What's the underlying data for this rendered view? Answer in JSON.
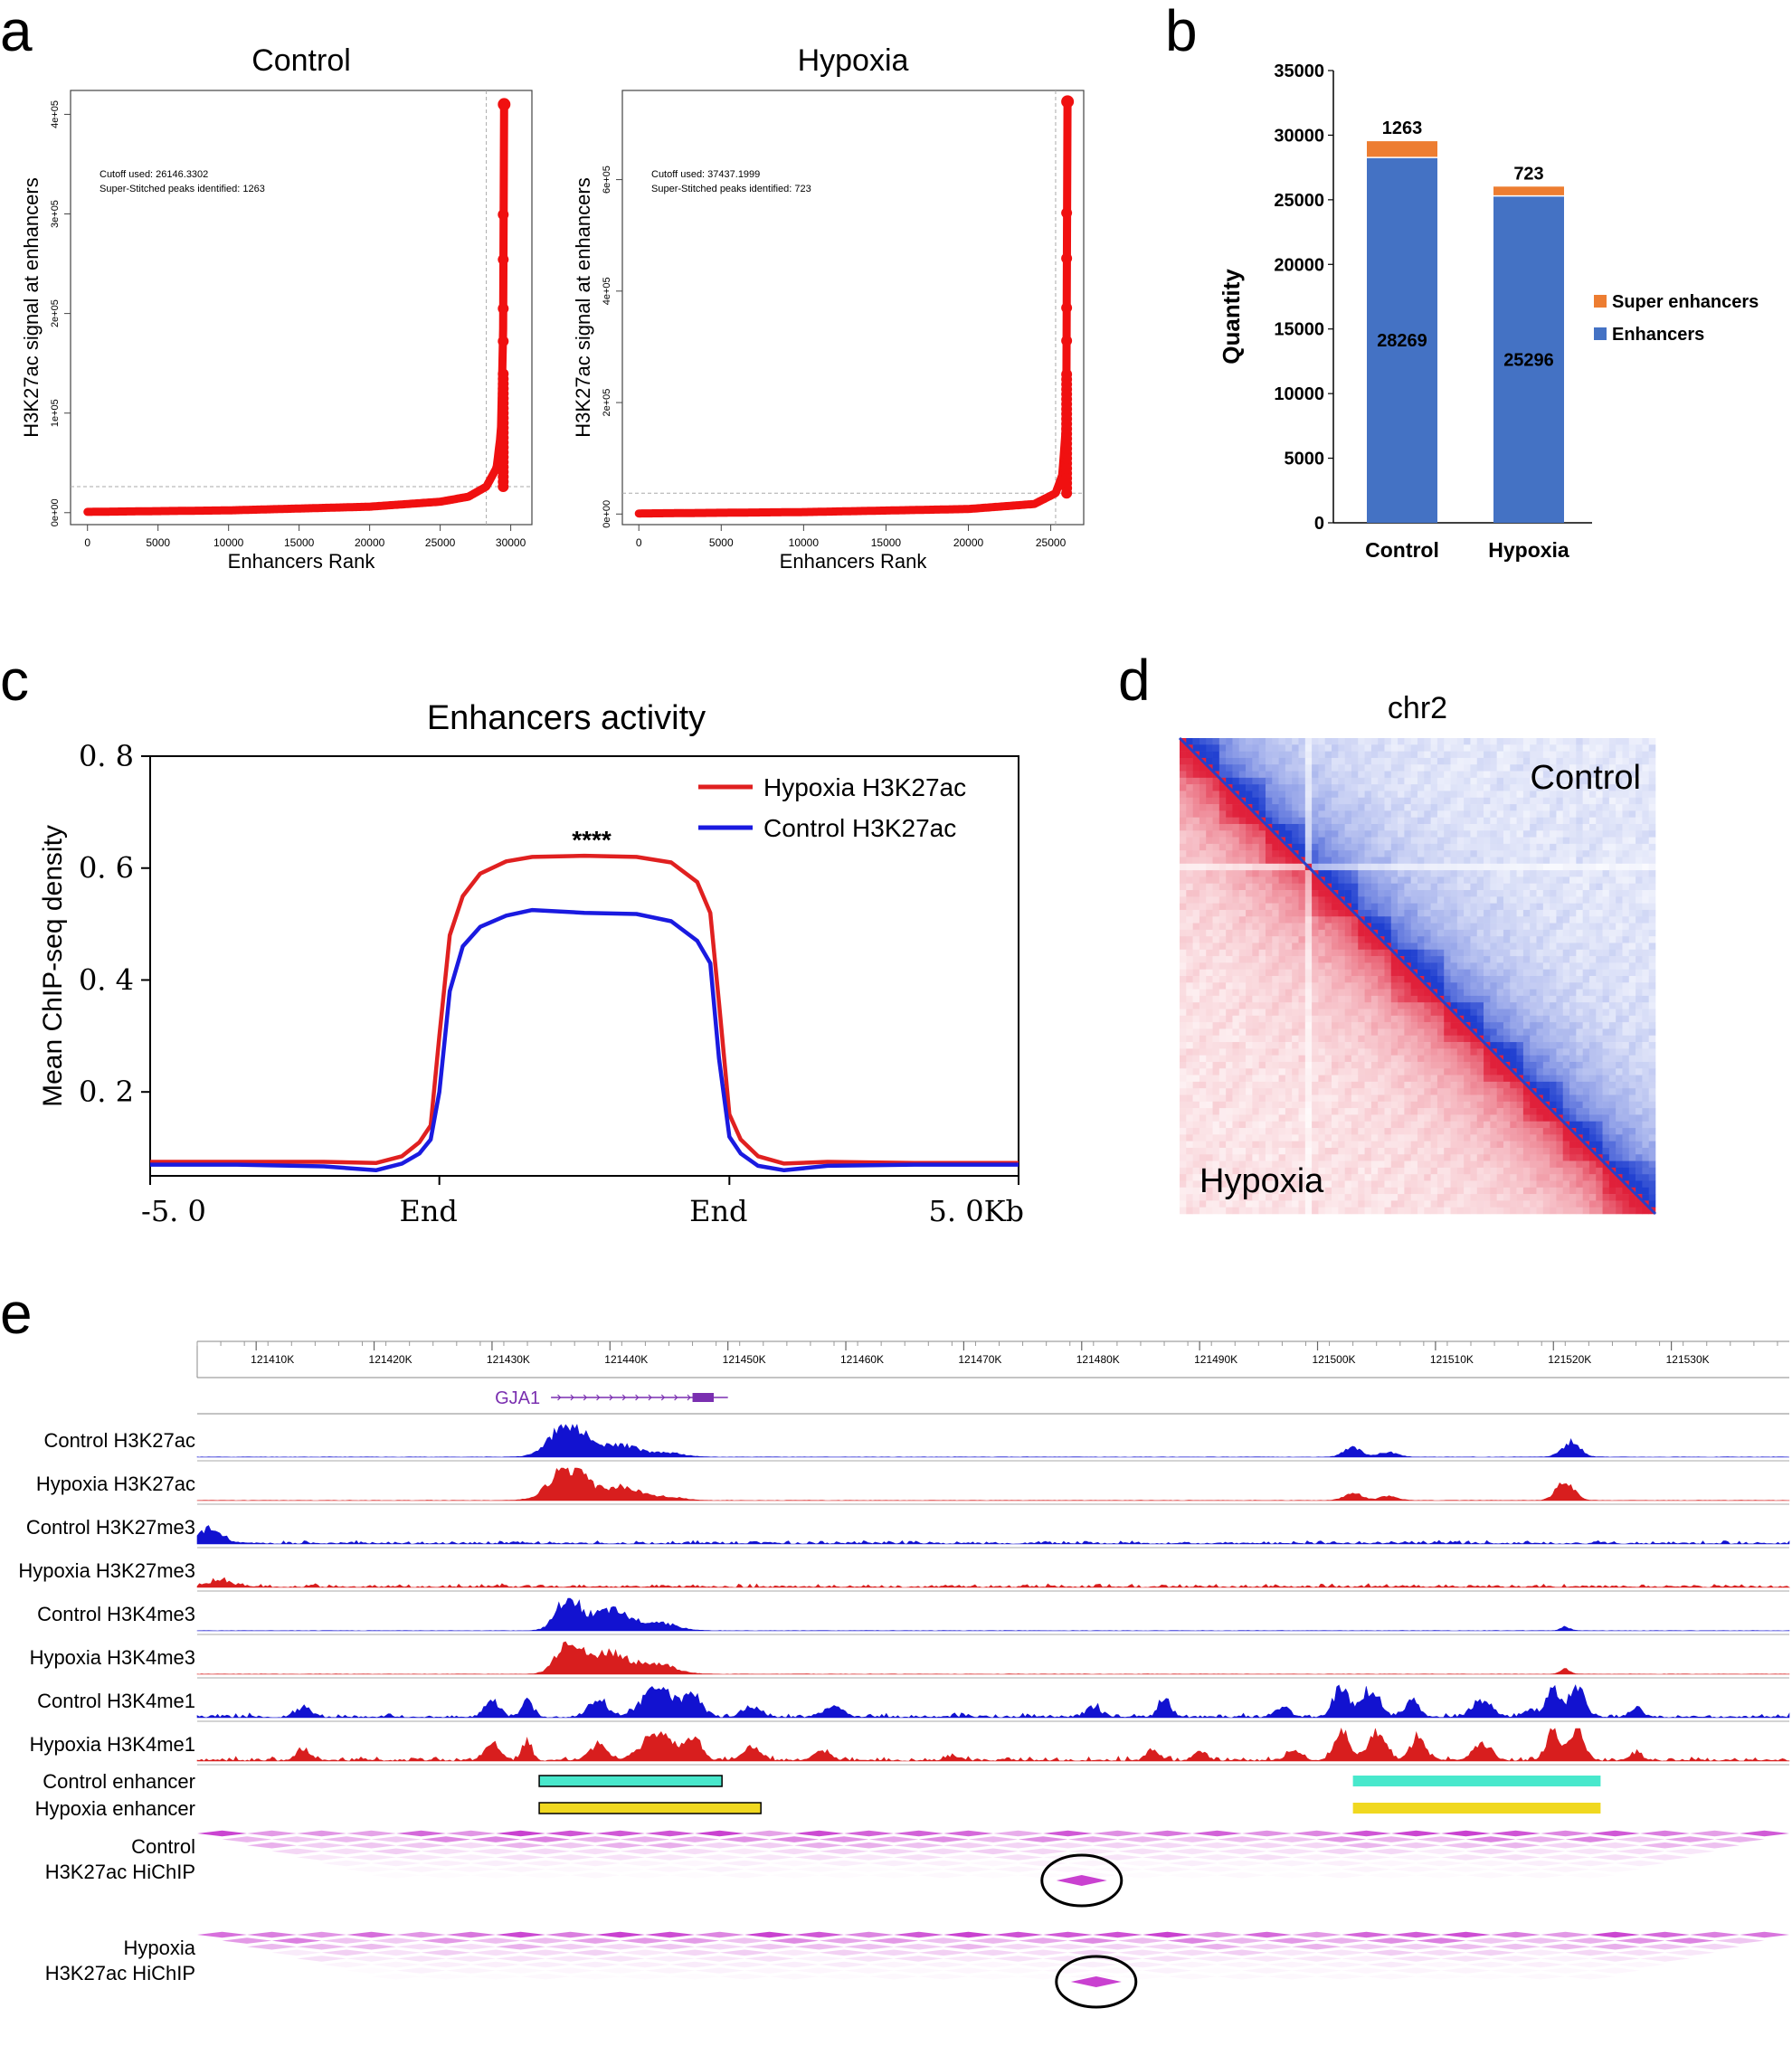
{
  "panels": {
    "a": "a",
    "b": "b",
    "c": "c",
    "d": "d",
    "e": "e"
  },
  "chart_data": [
    {
      "id": "a_control",
      "type": "scatter",
      "title": "Control",
      "xlabel": "Enhancers Rank",
      "ylabel": "H3K27ac signal at enhancers",
      "xlim": [
        -1200,
        31500
      ],
      "ylim": [
        -12000,
        424000
      ],
      "xticks": [
        0,
        5000,
        10000,
        15000,
        20000,
        25000,
        30000
      ],
      "xtick_labels": [
        "0",
        "5000",
        "10000",
        "15000",
        "20000",
        "25000",
        "30000"
      ],
      "yticks": [
        0,
        100000,
        200000,
        300000,
        400000
      ],
      "ytick_labels": [
        "0e+00",
        "1e+05",
        "2e+05",
        "3e+05",
        "4e+05"
      ],
      "cutoff_x": 28269,
      "cutoff_y": 26146,
      "total": 29532,
      "max_signal": 410000,
      "curve": [
        [
          0,
          800
        ],
        [
          10000,
          2300
        ],
        [
          20000,
          6000
        ],
        [
          25000,
          11000
        ],
        [
          27000,
          16000
        ],
        [
          28269,
          26146
        ],
        [
          29000,
          45000
        ],
        [
          29300,
          80000
        ],
        [
          29450,
          170000
        ],
        [
          29500,
          260000
        ],
        [
          29532,
          410000
        ]
      ],
      "annotations": [
        "Cutoff used:  26146.3302",
        "Super-Stitched peaks identified:  1263"
      ]
    },
    {
      "id": "a_hypoxia",
      "type": "scatter",
      "title": "Hypoxia",
      "xlabel": "Enhancers Rank",
      "ylabel": "H3K27ac signal at enhancers",
      "xlim": [
        -1000,
        27000
      ],
      "ylim": [
        -19000,
        760000
      ],
      "xticks": [
        0,
        5000,
        10000,
        15000,
        20000,
        25000
      ],
      "xtick_labels": [
        "0",
        "5000",
        "10000",
        "15000",
        "20000",
        "25000"
      ],
      "yticks": [
        0,
        200000,
        400000,
        600000
      ],
      "ytick_labels": [
        "0e+00",
        "2e+05",
        "4e+05",
        "6e+05"
      ],
      "cutoff_x": 25296,
      "cutoff_y": 37438,
      "total": 26019,
      "max_signal": 740000,
      "curve": [
        [
          0,
          1000
        ],
        [
          10000,
          3500
        ],
        [
          20000,
          9000
        ],
        [
          24000,
          18000
        ],
        [
          25296,
          37438
        ],
        [
          25700,
          70000
        ],
        [
          25900,
          150000
        ],
        [
          25980,
          280000
        ],
        [
          26000,
          400000
        ],
        [
          26019,
          740000
        ]
      ],
      "annotations": [
        "Cutoff used:  37437.1999",
        "Super-Stitched peaks identified:  723"
      ]
    },
    {
      "id": "b",
      "type": "bar",
      "stacked": true,
      "ylabel": "Quantity",
      "ylim": [
        0,
        35000
      ],
      "yticks": [
        0,
        5000,
        10000,
        15000,
        20000,
        25000,
        30000,
        35000
      ],
      "ytick_labels": [
        "0",
        "5000",
        "10000",
        "15000",
        "20000",
        "25000",
        "30000",
        "35000"
      ],
      "categories": [
        "Control",
        "Hypoxia"
      ],
      "series": [
        {
          "name": "Enhancers",
          "values": [
            28269,
            25296
          ],
          "labels": [
            "28269",
            "25296"
          ],
          "color": "#4472C4"
        },
        {
          "name": "Super enhancers",
          "values": [
            1263,
            723
          ],
          "labels": [
            "1263",
            "723"
          ],
          "color": "#ED7D31"
        }
      ],
      "legend": [
        "Super enhancers",
        "Enhancers"
      ],
      "legend_position": "right"
    },
    {
      "id": "c",
      "type": "line",
      "title": "Enhancers activity",
      "ylabel": "Mean ChIP-seq density",
      "xlim": [
        0,
        100
      ],
      "ylim": [
        0.05,
        0.8
      ],
      "yticks": [
        0.2,
        0.4,
        0.6,
        0.8
      ],
      "ytick_labels": [
        "0. 2",
        "0. 4",
        "0. 6",
        "0. 8"
      ],
      "xticks": [
        0,
        33.3,
        66.7,
        100
      ],
      "xtick_labels": [
        "-5. 0",
        "End",
        "End",
        "5. 0Kb"
      ],
      "annotation": "****",
      "legend_position": "top-right",
      "series": [
        {
          "name": "Hypoxia H3K27ac",
          "color": "#e02020",
          "x": [
            0,
            10,
            20,
            26,
            29,
            31,
            32.3,
            33.3,
            34.5,
            36,
            38,
            41,
            44,
            50,
            56,
            60,
            63,
            64.5,
            65.5,
            66.7,
            68,
            70,
            73,
            78,
            88,
            100
          ],
          "y": [
            0.075,
            0.075,
            0.075,
            0.073,
            0.085,
            0.11,
            0.14,
            0.3,
            0.48,
            0.55,
            0.59,
            0.612,
            0.62,
            0.622,
            0.62,
            0.61,
            0.575,
            0.52,
            0.36,
            0.16,
            0.115,
            0.085,
            0.072,
            0.075,
            0.073,
            0.073
          ]
        },
        {
          "name": "Control H3K27ac",
          "color": "#1a1ae0",
          "x": [
            0,
            10,
            20,
            26,
            29,
            31,
            32.3,
            33.3,
            34.5,
            36,
            38,
            41,
            44,
            50,
            56,
            60,
            63,
            64.5,
            65.5,
            66.7,
            68,
            70,
            73,
            78,
            88,
            100
          ],
          "y": [
            0.07,
            0.07,
            0.067,
            0.06,
            0.072,
            0.09,
            0.115,
            0.2,
            0.38,
            0.46,
            0.495,
            0.515,
            0.525,
            0.52,
            0.518,
            0.505,
            0.47,
            0.43,
            0.26,
            0.12,
            0.09,
            0.068,
            0.06,
            0.068,
            0.07,
            0.07
          ]
        }
      ]
    },
    {
      "id": "d",
      "type": "heatmap",
      "title": "chr2",
      "upper_label": "Control",
      "lower_label": "Hypoxia",
      "upper_color": "#1f3fd0",
      "lower_color": "#e0203a"
    },
    {
      "id": "e",
      "type": "area",
      "genome_xlim": [
        121405000,
        121540000
      ],
      "ticks": [
        121410,
        121420,
        121430,
        121440,
        121450,
        121460,
        121470,
        121480,
        121490,
        121500,
        121510,
        121520,
        121530
      ],
      "tick_labels": [
        "121410K",
        "121420K",
        "121430K",
        "121440K",
        "121450K",
        "121460K",
        "121470K",
        "121480K",
        "121490K",
        "121500K",
        "121510K",
        "121520K",
        "121530K"
      ],
      "gene": {
        "name": "GJA1",
        "start": 121435000,
        "end": 121450000,
        "color": "#7a2fb0"
      },
      "tracks": [
        {
          "label": "Control  H3K27ac",
          "color": "#1212d0",
          "peaks": [
            [
              121436500,
              1.0,
              3000
            ],
            [
              121441000,
              0.35,
              3000
            ],
            [
              121445000,
              0.12,
              2500
            ],
            [
              121503000,
              0.28,
              1500
            ],
            [
              121506000,
              0.15,
              1500
            ],
            [
              121521500,
              0.45,
              1500
            ]
          ]
        },
        {
          "label": "Hypoxia H3K27ac",
          "color": "#d81e1e",
          "peaks": [
            [
              121436500,
              1.0,
              3000
            ],
            [
              121441000,
              0.4,
              3000
            ],
            [
              121445000,
              0.1,
              2500
            ],
            [
              121503000,
              0.22,
              1500
            ],
            [
              121506000,
              0.13,
              1500
            ],
            [
              121521000,
              0.55,
              1500
            ]
          ]
        },
        {
          "label": "Control H3K27me3",
          "color": "#1212d0",
          "noise": 0.12,
          "peaks": [
            [
              121406000,
              0.45,
              2000
            ]
          ]
        },
        {
          "label": "Hypoxia H3K27me3",
          "color": "#d81e1e",
          "noise": 0.12,
          "peaks": [
            [
              121407000,
              0.2,
              2000
            ]
          ]
        },
        {
          "label": "Control H3K4me3",
          "color": "#1212d0",
          "peaks": [
            [
              121436500,
              1.0,
              2000
            ],
            [
              121440000,
              0.6,
              3000
            ],
            [
              121444000,
              0.25,
              3000
            ],
            [
              121521000,
              0.12,
              800
            ]
          ]
        },
        {
          "label": "Hypoxia H3K4me3",
          "color": "#d81e1e",
          "peaks": [
            [
              121436500,
              1.0,
              2000
            ],
            [
              121440000,
              0.65,
              3000
            ],
            [
              121444000,
              0.3,
              3000
            ],
            [
              121521000,
              0.15,
              800
            ]
          ]
        },
        {
          "label": "Control H3K4me1",
          "color": "#1212d0",
          "noise": 0.15,
          "peaks": [
            [
              121414000,
              0.3,
              1200
            ],
            [
              121430000,
              0.45,
              1200
            ],
            [
              121433000,
              0.6,
              800
            ],
            [
              121439000,
              0.5,
              1500
            ],
            [
              121444000,
              0.9,
              2500
            ],
            [
              121447000,
              0.7,
              1500
            ],
            [
              121452000,
              0.3,
              1500
            ],
            [
              121459000,
              0.3,
              1500
            ],
            [
              121481000,
              0.3,
              1200
            ],
            [
              121487000,
              0.55,
              1000
            ],
            [
              121497000,
              0.3,
              1200
            ],
            [
              121502000,
              0.9,
              1200
            ],
            [
              121504500,
              0.8,
              1500
            ],
            [
              121508000,
              0.5,
              1200
            ],
            [
              121514000,
              0.55,
              1500
            ],
            [
              121518000,
              0.25,
              1000
            ],
            [
              121520000,
              0.8,
              1200
            ],
            [
              121522000,
              1.0,
              1200
            ],
            [
              121527000,
              0.3,
              1000
            ]
          ]
        },
        {
          "label": "Hypoxia H3K4me1",
          "color": "#d81e1e",
          "noise": 0.15,
          "peaks": [
            [
              121414000,
              0.35,
              1200
            ],
            [
              121430000,
              0.5,
              1200
            ],
            [
              121433000,
              0.6,
              800
            ],
            [
              121439000,
              0.45,
              1500
            ],
            [
              121444000,
              0.8,
              2500
            ],
            [
              121447000,
              0.65,
              1500
            ],
            [
              121452000,
              0.35,
              1500
            ],
            [
              121458000,
              0.25,
              1500
            ],
            [
              121469000,
              0.15,
              1000
            ],
            [
              121486000,
              0.4,
              1000
            ],
            [
              121490000,
              0.3,
              1000
            ],
            [
              121498000,
              0.3,
              1200
            ],
            [
              121502000,
              0.9,
              1200
            ],
            [
              121505000,
              0.9,
              1500
            ],
            [
              121508500,
              0.7,
              1200
            ],
            [
              121514000,
              0.5,
              1500
            ],
            [
              121520000,
              0.9,
              1200
            ],
            [
              121522000,
              1.0,
              1200
            ],
            [
              121527000,
              0.25,
              1000
            ]
          ]
        }
      ],
      "enhancers": [
        {
          "label": "Control enhancer",
          "color": "#48e8cc",
          "regions": [
            [
              121434000,
              121449500
            ],
            [
              121503000,
              121524000
            ]
          ]
        },
        {
          "label": "Hypoxia enhancer",
          "color": "#f0d820",
          "regions": [
            [
              121434000,
              121452800
            ],
            [
              121503000,
              121524000
            ]
          ]
        }
      ],
      "hichip": [
        {
          "label_line1": "Control",
          "label_line2": "H3K27ac HiChIP",
          "loop_center": 121480000,
          "loop_depth": 0.6
        },
        {
          "label_line1": "Hypoxia",
          "label_line2": "H3K27ac HiChIP",
          "loop_center": 121480000,
          "loop_depth": 0.6
        }
      ]
    }
  ]
}
